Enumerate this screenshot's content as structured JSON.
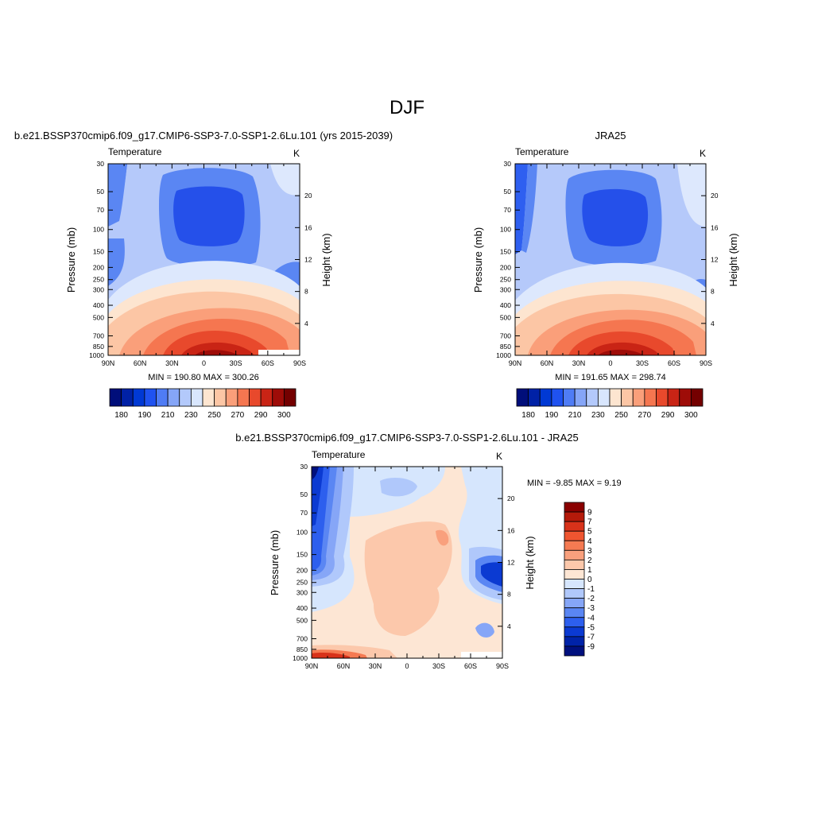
{
  "page_title": "DJF",
  "chart_data": [
    {
      "type": "contour",
      "title": "b.e21.BSSP370cmip6.f09_g17.CMIP6-SSP3-7.0-SSP1-2.6Lu.101 (yrs 2015-2039)",
      "variable": "Temperature",
      "units": "K",
      "ylabel": "Pressure (mb)",
      "y2label": "Height (km)",
      "xticks": [
        "90N",
        "60N",
        "30N",
        "0",
        "30S",
        "60S",
        "90S"
      ],
      "yticks": [
        "30",
        "50",
        "70",
        "100",
        "150",
        "200",
        "250",
        "300",
        "400",
        "500",
        "700",
        "850",
        "1000"
      ],
      "y2ticks": [
        "20",
        "16",
        "12",
        "8",
        "4"
      ],
      "stats": "MIN = 190.80  MAX = 300.26",
      "colorbar": {
        "orientation": "horizontal",
        "labels": [
          "180",
          "190",
          "210",
          "230",
          "250",
          "270",
          "290",
          "300"
        ],
        "colors": [
          "#000e7a",
          "#0021a6",
          "#0039d4",
          "#1f52f0",
          "#4f7cf5",
          "#85a5f7",
          "#b3c9fb",
          "#d8e6fd",
          "#fde5d0",
          "#fcc6a5",
          "#fa9f7a",
          "#f57650",
          "#e8492c",
          "#c92415",
          "#9e0c08",
          "#740000"
        ]
      }
    },
    {
      "type": "contour",
      "title": "JRA25",
      "variable": "Temperature",
      "units": "K",
      "ylabel": "Pressure (mb)",
      "y2label": "Height (km)",
      "xticks": [
        "90N",
        "60N",
        "30N",
        "0",
        "30S",
        "60S",
        "90S"
      ],
      "yticks": [
        "30",
        "50",
        "70",
        "100",
        "150",
        "200",
        "250",
        "300",
        "400",
        "500",
        "700",
        "850",
        "1000"
      ],
      "y2ticks": [
        "20",
        "16",
        "12",
        "8",
        "4"
      ],
      "stats": "MIN = 191.65  MAX = 298.74",
      "colorbar": {
        "orientation": "horizontal",
        "labels": [
          "180",
          "190",
          "210",
          "230",
          "250",
          "270",
          "290",
          "300"
        ],
        "colors": [
          "#000e7a",
          "#0021a6",
          "#0039d4",
          "#1f52f0",
          "#4f7cf5",
          "#85a5f7",
          "#b3c9fb",
          "#d8e6fd",
          "#fde5d0",
          "#fcc6a5",
          "#fa9f7a",
          "#f57650",
          "#e8492c",
          "#c92415",
          "#9e0c08",
          "#740000"
        ]
      }
    },
    {
      "type": "contour",
      "title": "b.e21.BSSP370cmip6.f09_g17.CMIP6-SSP3-7.0-SSP1-2.6Lu.101 - JRA25",
      "variable": "Temperature",
      "units": "K",
      "ylabel": "Pressure (mb)",
      "y2label": "Height (km)",
      "xticks": [
        "90N",
        "60N",
        "30N",
        "0",
        "30S",
        "60S",
        "90S"
      ],
      "yticks": [
        "30",
        "50",
        "70",
        "100",
        "150",
        "200",
        "250",
        "300",
        "400",
        "500",
        "700",
        "850",
        "1000"
      ],
      "y2ticks": [
        "20",
        "16",
        "12",
        "8",
        "4"
      ],
      "stats": "MIN =  -9.85  MAX =   9.19",
      "colorbar": {
        "orientation": "vertical",
        "labels": [
          "9",
          "7",
          "5",
          "4",
          "3",
          "2",
          "1",
          "0",
          "-1",
          "-2",
          "-3",
          "-4",
          "-5",
          "-7",
          "-9"
        ],
        "colors": [
          "#8a0000",
          "#b51a0a",
          "#d8321a",
          "#ef5530",
          "#f57a52",
          "#f9a07d",
          "#fcc8ab",
          "#fde6d4",
          "#d6e6fd",
          "#b0c8fb",
          "#86a6f7",
          "#5a86f3",
          "#2d5fee",
          "#0b3ad2",
          "#0023a8",
          "#00107e"
        ]
      }
    }
  ]
}
